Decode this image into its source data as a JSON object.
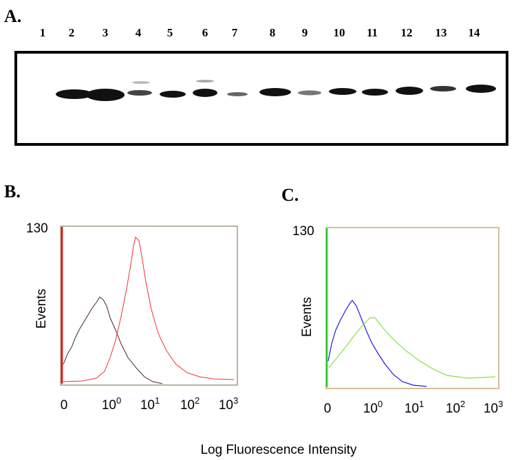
{
  "panel_a": {
    "label": "A.",
    "lanes": [
      "1",
      "2",
      "3",
      "4",
      "5",
      "6",
      "7",
      "8",
      "9",
      "10",
      "11",
      "12",
      "13",
      "14"
    ]
  },
  "panel_b": {
    "label": "B.",
    "y_top": "130",
    "y_label": "Events",
    "x_ticks": [
      {
        "base": "0"
      },
      {
        "base": "10",
        "exp": "0"
      },
      {
        "base": "10",
        "exp": "1"
      },
      {
        "base": "10",
        "exp": "2"
      },
      {
        "base": "10",
        "exp": "3"
      }
    ]
  },
  "panel_c": {
    "label": "C.",
    "y_top": "130",
    "y_label": "Events",
    "x_ticks": [
      {
        "base": "0"
      },
      {
        "base": "10",
        "exp": "0"
      },
      {
        "base": "10",
        "exp": "1"
      },
      {
        "base": "10",
        "exp": "2"
      },
      {
        "base": "10",
        "exp": "3"
      }
    ]
  },
  "x_label": "Log Fluorescence Intensity"
}
